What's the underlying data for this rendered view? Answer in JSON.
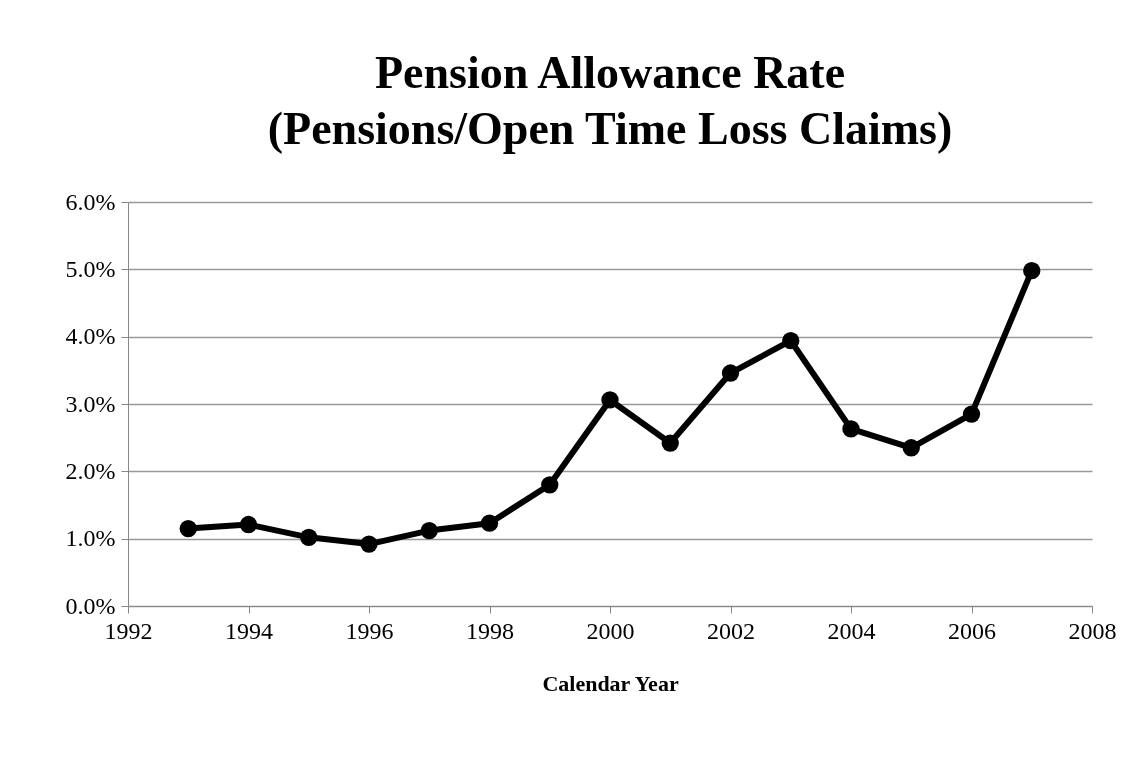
{
  "chart_data": {
    "type": "line",
    "title": "Pension Allowance Rate\n(Pensions/Open Time Loss Claims)",
    "xlabel": "Calendar Year",
    "x": [
      1993,
      1994,
      1995,
      1996,
      1997,
      1998,
      1999,
      2000,
      2001,
      2002,
      2003,
      2004,
      2005,
      2006,
      2007
    ],
    "series": [
      {
        "color": "#000000",
        "values": [
          1.15,
          1.21,
          1.02,
          0.92,
          1.12,
          1.23,
          1.8,
          3.06,
          2.42,
          3.46,
          3.94,
          2.63,
          2.35,
          2.85,
          4.98
        ]
      }
    ],
    "xlim": [
      1992,
      2008
    ],
    "xticks": [
      1992,
      1994,
      1996,
      1998,
      2000,
      2002,
      2004,
      2006,
      2008
    ],
    "ylim": [
      0,
      6
    ],
    "yticks": [
      {
        "value": 0,
        "label": "0.0%"
      },
      {
        "value": 1,
        "label": "1.0%"
      },
      {
        "value": 2,
        "label": "2.0%"
      },
      {
        "value": 3,
        "label": "3.0%"
      },
      {
        "value": 4,
        "label": "4.0%"
      },
      {
        "value": 5,
        "label": "5.0%"
      },
      {
        "value": 6,
        "label": "6.0%"
      }
    ],
    "grid": "y",
    "marker": "circle",
    "line_style": "solid"
  }
}
